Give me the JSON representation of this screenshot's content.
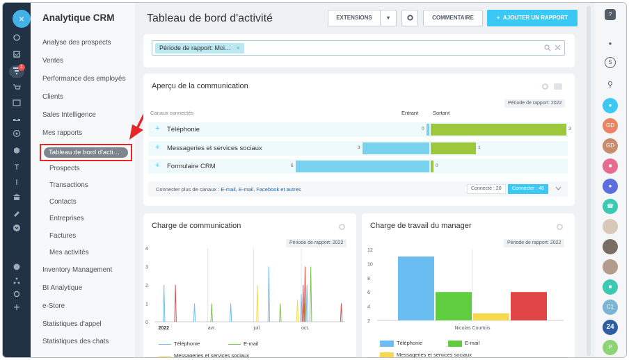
{
  "app": {
    "close_icon_label": "×"
  },
  "leftbar": {
    "notification_count": "1"
  },
  "menu": {
    "title": "Analytique CRM",
    "items": [
      "Analyse des prospects",
      "Ventes",
      "Performance des employés",
      "Clients",
      "Sales Intelligence",
      "Mes rapports"
    ],
    "active": "Tableau de bord d'acti…",
    "subitems": [
      "Prospects",
      "Transactions",
      "Contacts",
      "Entreprises",
      "Factures",
      "Mes activités"
    ],
    "items_after": [
      "Inventory Management",
      "BI Analytique",
      "e-Store",
      "Statistiques d'appel",
      "Statistiques des chats"
    ]
  },
  "header": {
    "title": "Tableau de bord d'activité",
    "extensions_label": "EXTENSIONS",
    "comment_label": "COMMENTAIRE",
    "add_report_label": "AJOUTER UN RAPPORT"
  },
  "filter": {
    "chip": "Période de rapport: Moi…",
    "chip_remove": "×"
  },
  "communication_overview": {
    "title": "Aperçu de la communication",
    "period_badge": "Période de rapport: 2022",
    "col_channels": "Canaux connectés",
    "col_in": "Entrant",
    "col_out": "Sortant",
    "rows": [
      {
        "label": "Téléphonie",
        "in": 0,
        "out": 3
      },
      {
        "label": "Messageries et services sociaux",
        "in": 3,
        "out": 1
      },
      {
        "label": "Formulaire CRM",
        "in": 6,
        "out": 0
      }
    ],
    "footer": {
      "text": "Connecter plus de canaux : ",
      "links": [
        "E-mail",
        "E-mail",
        "Facebook et autres"
      ],
      "connected": "Connecté : 20",
      "connect_button": "Connecter : 46"
    }
  },
  "comm_load": {
    "title": "Charge de communication",
    "period_badge": "Période de rapport: 2022",
    "legend": [
      "Téléphonie",
      "E-mail",
      "Messageries et services sociaux"
    ]
  },
  "manager_load": {
    "title": "Charge de travail du manager",
    "period_badge": "Période de rapport: 2022",
    "legend": [
      "Téléphonie",
      "E-mail",
      "Messageries et services sociaux"
    ]
  },
  "right_avatars": [
    "GD",
    "GD",
    "C1",
    "24",
    "P"
  ],
  "colors": {
    "accent": "#3bc8f5",
    "out_green": "#9dc83c",
    "in_blue": "#79d2ec",
    "sidebar": "#213244",
    "red": "#e52727"
  },
  "chart_data": [
    {
      "type": "line",
      "title": "Charge de communication",
      "x_ticks": [
        "2022",
        "avr.",
        "juil.",
        "oct."
      ],
      "y_ticks": [
        0,
        1,
        2,
        3,
        4
      ],
      "ylim": [
        0,
        4
      ],
      "series": [
        {
          "name": "Téléphonie",
          "color": "#79bde8",
          "spikes": [
            [
              0.05,
              2
            ],
            [
              0.21,
              1
            ],
            [
              0.4,
              1
            ],
            [
              0.6,
              3
            ],
            [
              0.77,
              1.5
            ],
            [
              0.8,
              2
            ]
          ]
        },
        {
          "name": "E-mail",
          "color": "#7bc74d",
          "spikes": [
            [
              0.3,
              1
            ],
            [
              0.66,
              1
            ],
            [
              0.78,
              1
            ],
            [
              0.82,
              3
            ]
          ]
        },
        {
          "name": "Messageries et services sociaux",
          "color": "#f6d94c",
          "spikes": [
            [
              0.54,
              2
            ],
            [
              0.75,
              1.2
            ],
            [
              0.79,
              1
            ]
          ]
        },
        {
          "name": "",
          "color": "#d9534f",
          "spikes": [
            [
              0.11,
              2
            ],
            [
              0.78,
              2
            ],
            [
              0.79,
              3
            ],
            [
              0.98,
              1
            ]
          ]
        }
      ]
    },
    {
      "type": "bar",
      "title": "Charge de travail du manager",
      "categories": [
        "Nicolas Courtois"
      ],
      "y_ticks": [
        2,
        4,
        6,
        8,
        10,
        12
      ],
      "ylim": [
        2,
        12
      ],
      "series": [
        {
          "name": "Téléphonie",
          "color": "#69bdf0",
          "values": [
            11
          ]
        },
        {
          "name": "E-mail",
          "color": "#60cd41",
          "values": [
            6
          ]
        },
        {
          "name": "Messageries et services sociaux",
          "color": "#f6d94c",
          "values": [
            3
          ]
        },
        {
          "name": "",
          "color": "#e24545",
          "values": [
            6
          ]
        }
      ]
    }
  ]
}
